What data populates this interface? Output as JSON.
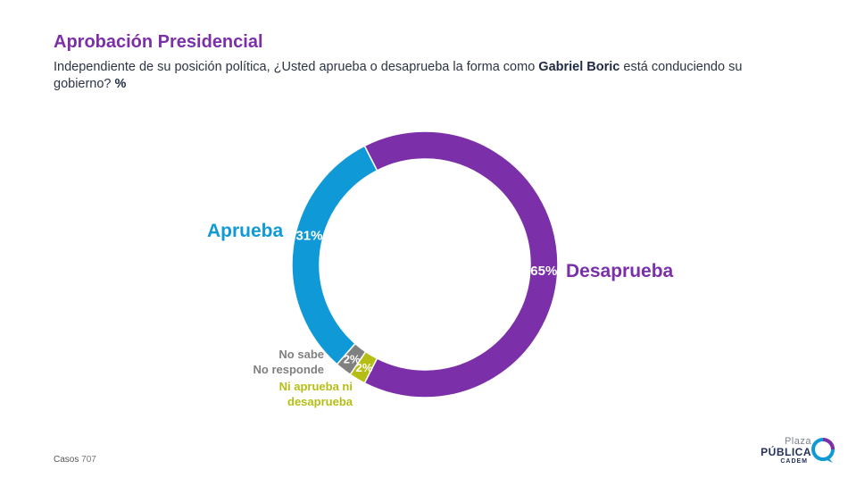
{
  "header": {
    "title": "Aprobación Presidencial",
    "subtitle_part1": "Independiente de su posición política, ¿Usted aprueba o desaprueba la forma como ",
    "subtitle_name": "Gabriel Boric",
    "subtitle_part2": " está conduciendo su gobierno? ",
    "subtitle_unit": "%"
  },
  "chart_data": {
    "type": "pie",
    "donut": true,
    "slices": [
      {
        "label": "Desaprueba",
        "value": 65,
        "value_label": "65%",
        "color": "#7B2FA8"
      },
      {
        "label": "Ni aprueba ni desaprueba",
        "value": 2,
        "value_label": "2%",
        "color": "#B5BE14"
      },
      {
        "label": "No sabe No responde",
        "value": 2,
        "value_label": "2%",
        "color": "#808080"
      },
      {
        "label": "Aprueba",
        "value": 31,
        "value_label": "31%",
        "color": "#0F9AD7"
      }
    ]
  },
  "labels": {
    "aprueba": "Aprueba",
    "desaprueba": "Desaprueba",
    "nosabe_line1": "No sabe",
    "nosabe_line2": "No responde",
    "ni_line1": "Ni aprueba ni",
    "ni_line2": "desaprueba"
  },
  "footer": {
    "casos_label": "Casos",
    "casos_value": "707"
  },
  "logo": {
    "line1": "Plaza",
    "line2": "PÚBLICA",
    "line3": "CADEM"
  }
}
